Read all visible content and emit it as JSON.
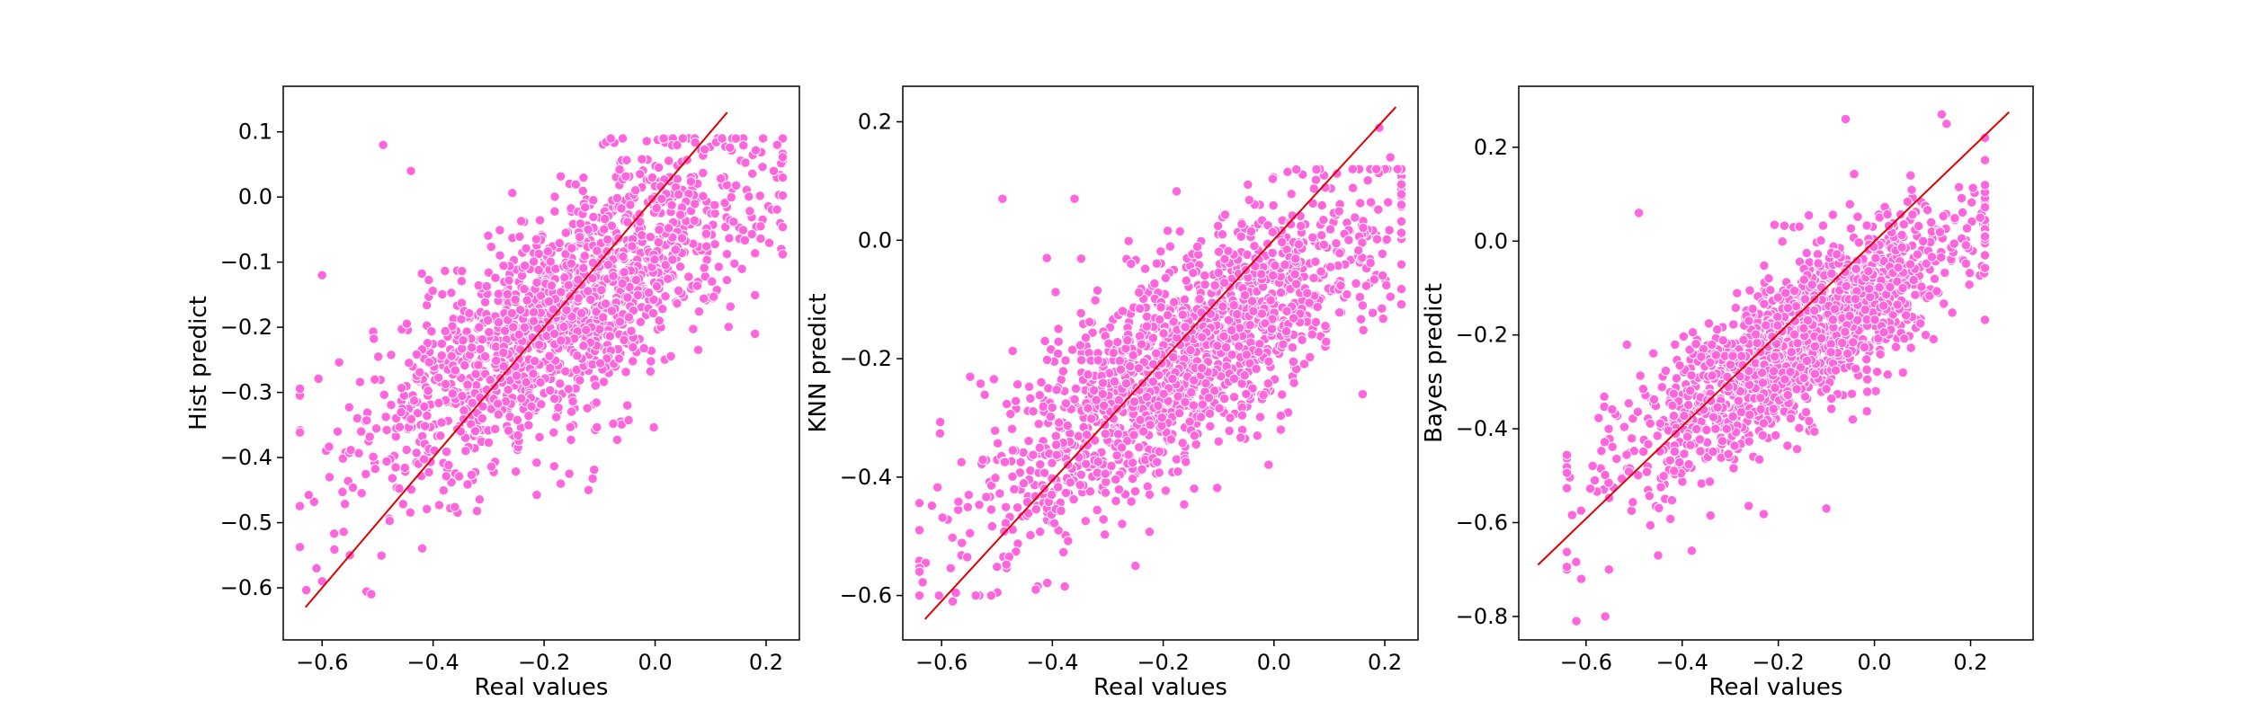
{
  "figure": {
    "background": "#ffffff"
  },
  "style": {
    "point_color": "#ff66dd",
    "point_edge": "#ffffff",
    "line_color": "#dd0000"
  },
  "chart_data": [
    {
      "type": "scatter",
      "title": "",
      "xlabel": "Real values",
      "ylabel": "Hist predict",
      "xlim": [
        -0.67,
        0.26
      ],
      "ylim": [
        -0.68,
        0.17
      ],
      "xticks": [
        -0.6,
        -0.4,
        -0.2,
        0.0,
        0.2
      ],
      "xtick_labels": [
        "−0.6",
        "−0.4",
        "−0.2",
        "0.0",
        "0.2"
      ],
      "yticks": [
        -0.6,
        -0.5,
        -0.4,
        -0.3,
        -0.2,
        -0.1,
        0.0,
        0.1
      ],
      "ytick_labels": [
        "−0.6",
        "−0.5",
        "−0.4",
        "−0.3",
        "−0.2",
        "−0.1",
        "0.0",
        "0.1"
      ],
      "grid": false,
      "reference_line": {
        "x": [
          -0.63,
          0.13
        ],
        "y": [
          -0.63,
          0.13
        ]
      },
      "cloud": {
        "n_points": 1500,
        "x_mean": -0.16,
        "x_sd": 0.18,
        "x_min": -0.64,
        "x_max": 0.23,
        "intercept": -0.085,
        "slope": 0.55,
        "noise_sd": 0.085,
        "y_min": -0.62,
        "y_max": 0.09
      },
      "points": [
        {
          "x": -0.49,
          "y": 0.08
        },
        {
          "x": -0.44,
          "y": 0.04
        },
        {
          "x": -0.6,
          "y": -0.59
        },
        {
          "x": -0.6,
          "y": -0.12
        },
        {
          "x": -0.12,
          "y": -0.45
        },
        {
          "x": -0.17,
          "y": -0.44
        },
        {
          "x": -0.08,
          "y": 0.09
        },
        {
          "x": 0.05,
          "y": 0.09
        },
        {
          "x": 0.22,
          "y": 0.08
        },
        {
          "x": 0.23,
          "y": 0.03
        },
        {
          "x": 0.18,
          "y": -0.21
        },
        {
          "x": -0.61,
          "y": -0.57
        },
        {
          "x": -0.05,
          "y": -0.32
        },
        {
          "x": -0.55,
          "y": -0.55
        }
      ]
    },
    {
      "type": "scatter",
      "title": "",
      "xlabel": "Real values",
      "ylabel": "KNN predict",
      "xlim": [
        -0.67,
        0.26
      ],
      "ylim": [
        -0.675,
        0.26
      ],
      "xticks": [
        -0.6,
        -0.4,
        -0.2,
        0.0,
        0.2
      ],
      "xtick_labels": [
        "−0.6",
        "−0.4",
        "−0.2",
        "0.0",
        "0.2"
      ],
      "yticks": [
        -0.6,
        -0.4,
        -0.2,
        0.0,
        0.2
      ],
      "ytick_labels": [
        "−0.6",
        "−0.4",
        "−0.2",
        "0.0",
        "0.2"
      ],
      "grid": false,
      "reference_line": {
        "x": [
          -0.63,
          0.22
        ],
        "y": [
          -0.64,
          0.225
        ]
      },
      "cloud": {
        "n_points": 1500,
        "x_mean": -0.16,
        "x_sd": 0.18,
        "x_min": -0.64,
        "x_max": 0.23,
        "intercept": -0.1,
        "slope": 0.62,
        "noise_sd": 0.09,
        "y_min": -0.6,
        "y_max": 0.12
      },
      "points": [
        {
          "x": -0.49,
          "y": 0.07
        },
        {
          "x": -0.36,
          "y": 0.07
        },
        {
          "x": -0.41,
          "y": -0.03
        },
        {
          "x": 0.19,
          "y": 0.19
        },
        {
          "x": 0.21,
          "y": 0.14
        },
        {
          "x": 0.23,
          "y": 0.06
        },
        {
          "x": 0.16,
          "y": -0.26
        },
        {
          "x": -0.64,
          "y": -0.56
        },
        {
          "x": -0.43,
          "y": -0.59
        },
        {
          "x": -0.58,
          "y": -0.61
        },
        {
          "x": -0.03,
          "y": -0.33
        },
        {
          "x": -0.25,
          "y": -0.55
        }
      ]
    },
    {
      "type": "scatter",
      "title": "",
      "xlabel": "Real values",
      "ylabel": "Bayes predict",
      "xlim": [
        -0.74,
        0.33
      ],
      "ylim": [
        -0.85,
        0.33
      ],
      "xticks": [
        -0.6,
        -0.4,
        -0.2,
        0.0,
        0.2
      ],
      "xtick_labels": [
        "−0.6",
        "−0.4",
        "−0.2",
        "0.0",
        "0.2"
      ],
      "yticks": [
        -0.8,
        -0.6,
        -0.4,
        -0.2,
        0.0,
        0.2
      ],
      "ytick_labels": [
        "−0.8",
        "−0.6",
        "−0.4",
        "−0.2",
        "0.0",
        "0.2"
      ],
      "grid": false,
      "reference_line": {
        "x": [
          -0.7,
          0.28
        ],
        "y": [
          -0.69,
          0.275
        ]
      },
      "cloud": {
        "n_points": 1500,
        "x_mean": -0.16,
        "x_sd": 0.18,
        "x_min": -0.64,
        "x_max": 0.23,
        "intercept": -0.115,
        "slope": 0.65,
        "noise_sd": 0.085,
        "y_min": -0.7,
        "y_max": 0.22
      },
      "points": [
        {
          "x": -0.06,
          "y": 0.26
        },
        {
          "x": 0.14,
          "y": 0.27
        },
        {
          "x": 0.15,
          "y": 0.25
        },
        {
          "x": -0.49,
          "y": 0.06
        },
        {
          "x": -0.62,
          "y": -0.81
        },
        {
          "x": -0.56,
          "y": -0.8
        },
        {
          "x": -0.1,
          "y": -0.57
        },
        {
          "x": 0.22,
          "y": 0.05
        },
        {
          "x": 0.23,
          "y": 0.01
        },
        {
          "x": -0.61,
          "y": -0.72
        },
        {
          "x": -0.45,
          "y": -0.67
        },
        {
          "x": -0.38,
          "y": -0.66
        }
      ]
    }
  ]
}
